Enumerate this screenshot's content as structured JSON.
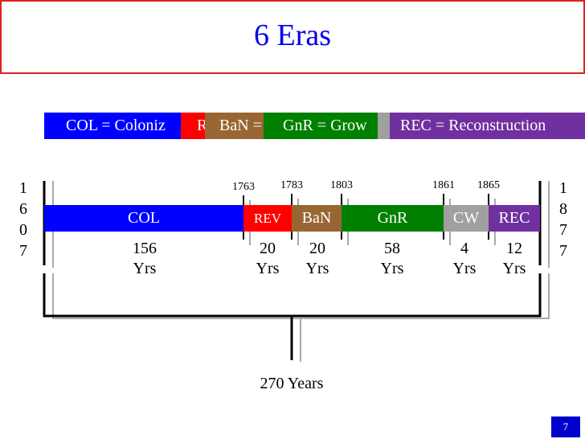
{
  "title": "6 Eras",
  "legend": [
    {
      "label": "COL = Coloniz"
    },
    {
      "label": "R"
    },
    {
      "label": "BaN ="
    },
    {
      "label": "GnR = Grow"
    },
    {
      "label": "REC = Reconstruction"
    }
  ],
  "start_year": "1607",
  "end_year": "1877",
  "boundary_years": [
    "1763",
    "1783",
    "1803",
    "1861",
    "1865"
  ],
  "eras": [
    {
      "label": "COL",
      "years": "156",
      "unit": "Yrs"
    },
    {
      "label": "REV",
      "years": "20",
      "unit": "Yrs"
    },
    {
      "label": "BaN",
      "years": "20",
      "unit": "Yrs"
    },
    {
      "label": "GnR",
      "years": "58",
      "unit": "Yrs"
    },
    {
      "label": "CW",
      "years": "4",
      "unit": "Yrs"
    },
    {
      "label": "REC",
      "years": "12",
      "unit": "Yrs"
    }
  ],
  "total": "270 Years",
  "page_number": "7"
}
